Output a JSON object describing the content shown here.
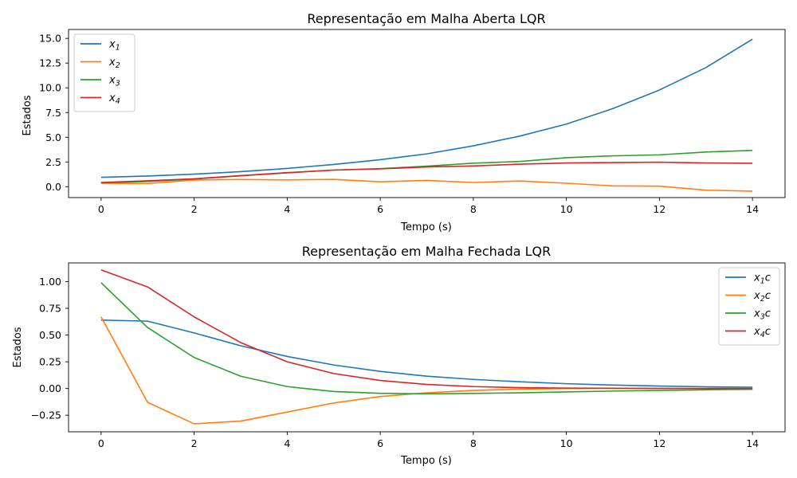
{
  "chart_data": [
    {
      "type": "line",
      "title": "Representação em Malha Aberta LQR",
      "xlabel": "Tempo (s)",
      "ylabel": "Estados",
      "xlim": [
        -0.7,
        14.7
      ],
      "ylim": [
        -1.1,
        15.9
      ],
      "xticks": [
        0,
        2,
        4,
        6,
        8,
        10,
        12,
        14
      ],
      "xtick_labels": [
        "0",
        "2",
        "4",
        "6",
        "8",
        "10",
        "12",
        "14"
      ],
      "yticks": [
        0,
        2.5,
        5,
        7.5,
        10,
        12.5,
        15
      ],
      "ytick_labels": [
        "0.0",
        "2.5",
        "5.0",
        "7.5",
        "10.0",
        "12.5",
        "15.0"
      ],
      "legend_position": "upper left",
      "x": [
        0,
        1,
        2,
        3,
        4,
        5,
        6,
        7,
        8,
        9,
        10,
        11,
        12,
        13,
        14
      ],
      "series": [
        {
          "name": "x1",
          "base": "x",
          "sub": "1",
          "suffix": "",
          "color": "#1f77b4",
          "values": [
            0.95,
            1.08,
            1.27,
            1.52,
            1.85,
            2.25,
            2.73,
            3.32,
            4.13,
            5.12,
            6.33,
            7.9,
            9.78,
            12.05,
            14.92
          ]
        },
        {
          "name": "x2",
          "base": "x",
          "sub": "2",
          "suffix": "",
          "color": "#ff7f0e",
          "values": [
            0.35,
            0.32,
            0.68,
            0.73,
            0.69,
            0.74,
            0.5,
            0.64,
            0.42,
            0.58,
            0.35,
            0.08,
            0.05,
            -0.35,
            -0.45
          ]
        },
        {
          "name": "x3",
          "base": "x",
          "sub": "3",
          "suffix": "",
          "color": "#2ca02c",
          "values": [
            0.38,
            0.53,
            0.78,
            1.1,
            1.4,
            1.68,
            1.83,
            2.08,
            2.38,
            2.55,
            2.93,
            3.12,
            3.22,
            3.51,
            3.67
          ]
        },
        {
          "name": "x4",
          "base": "x",
          "sub": "4",
          "suffix": "",
          "color": "#d62728",
          "values": [
            0.43,
            0.6,
            0.8,
            1.12,
            1.42,
            1.68,
            1.8,
            2.0,
            2.1,
            2.28,
            2.4,
            2.44,
            2.48,
            2.4,
            2.37
          ]
        }
      ]
    },
    {
      "type": "line",
      "title": "Representação em Malha Fechada LQR",
      "xlabel": "Tempo (s)",
      "ylabel": "Estados",
      "xlim": [
        -0.7,
        14.7
      ],
      "ylim": [
        -0.405,
        1.175
      ],
      "xticks": [
        0,
        2,
        4,
        6,
        8,
        10,
        12,
        14
      ],
      "xtick_labels": [
        "0",
        "2",
        "4",
        "6",
        "8",
        "10",
        "12",
        "14"
      ],
      "yticks": [
        -0.25,
        0,
        0.25,
        0.5,
        0.75,
        1.0
      ],
      "ytick_labels": [
        "−0.25",
        "0.00",
        "0.25",
        "0.50",
        "0.75",
        "1.00"
      ],
      "legend_position": "upper right",
      "x": [
        0,
        1,
        2,
        3,
        4,
        5,
        6,
        7,
        8,
        9,
        10,
        11,
        12,
        13,
        14
      ],
      "series": [
        {
          "name": "x1c",
          "base": "x",
          "sub": "1",
          "suffix": "c",
          "color": "#1f77b4",
          "values": [
            0.64,
            0.63,
            0.52,
            0.4,
            0.3,
            0.22,
            0.16,
            0.115,
            0.085,
            0.063,
            0.045,
            0.032,
            0.023,
            0.016,
            0.012
          ]
        },
        {
          "name": "x2c",
          "base": "x",
          "sub": "2",
          "suffix": "c",
          "color": "#ff7f0e",
          "values": [
            0.67,
            -0.13,
            -0.33,
            -0.305,
            -0.22,
            -0.135,
            -0.075,
            -0.04,
            -0.018,
            -0.006,
            0.0,
            0.002,
            0.001,
            0.0,
            0.0
          ]
        },
        {
          "name": "x3c",
          "base": "x",
          "sub": "3",
          "suffix": "c",
          "color": "#2ca02c",
          "values": [
            0.99,
            0.57,
            0.29,
            0.115,
            0.018,
            -0.028,
            -0.045,
            -0.05,
            -0.046,
            -0.04,
            -0.032,
            -0.024,
            -0.018,
            -0.012,
            -0.008
          ]
        },
        {
          "name": "x4c",
          "base": "x",
          "sub": "4",
          "suffix": "c",
          "color": "#d62728",
          "values": [
            1.11,
            0.95,
            0.67,
            0.43,
            0.25,
            0.14,
            0.075,
            0.038,
            0.018,
            0.008,
            0.004,
            0.002,
            0.001,
            0.0,
            0.0
          ]
        }
      ]
    }
  ]
}
